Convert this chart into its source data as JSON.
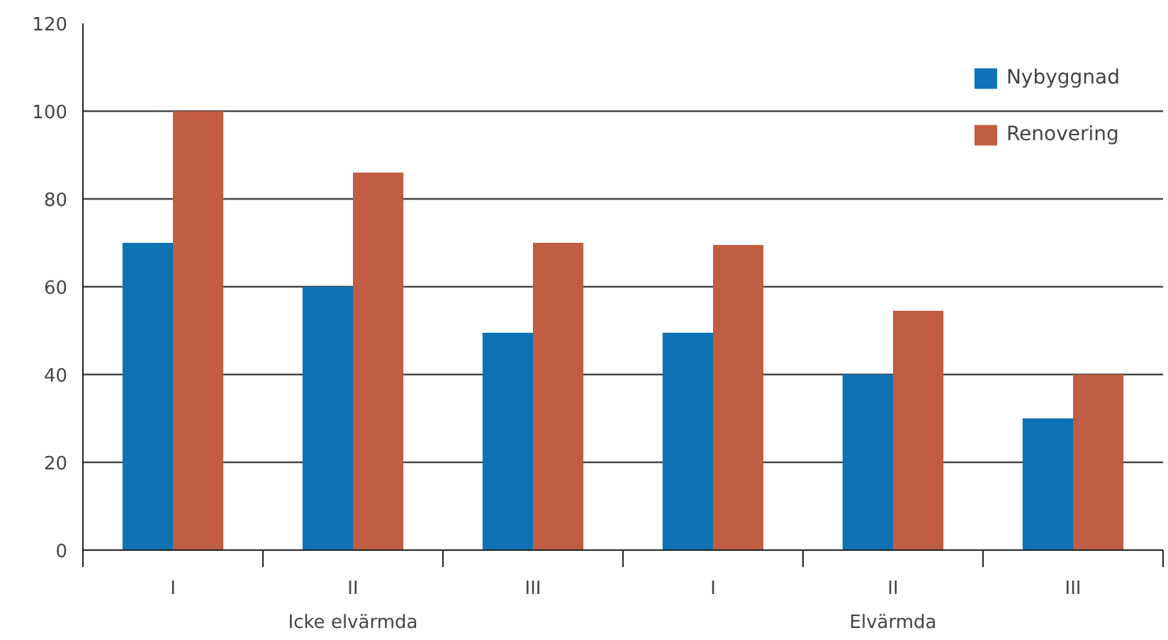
{
  "chart_data": {
    "type": "bar",
    "categories": [
      "I",
      "II",
      "III",
      "I",
      "II",
      "III"
    ],
    "series": [
      {
        "name": "Nybyggnad",
        "color": "#0e72b5",
        "values": [
          70,
          60,
          49.5,
          49.5,
          40,
          30
        ]
      },
      {
        "name": "Renovering",
        "color": "#c05d43",
        "values": [
          100,
          86,
          70,
          69.5,
          54.5,
          40
        ]
      }
    ],
    "annotations": [
      "Icke elvärmda",
      "Elvärmda"
    ],
    "ylim": [
      0,
      120
    ],
    "yticks": [
      0,
      20,
      40,
      60,
      80,
      100,
      120
    ],
    "grid": "y",
    "legend": "top right"
  }
}
